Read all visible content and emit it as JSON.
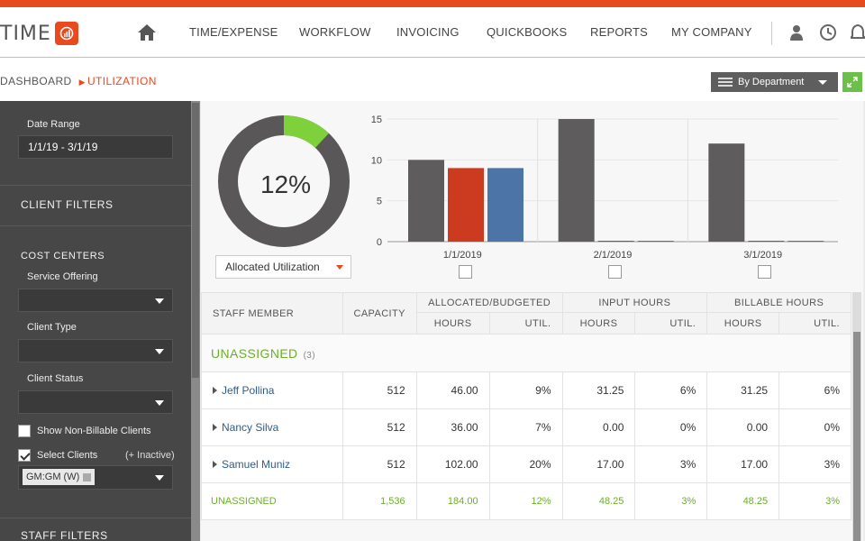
{
  "app": {
    "logo_text": "TIME",
    "brand_color": "#e8491d",
    "accent_green": "#6cc04a"
  },
  "nav": {
    "home_icon": "home-icon",
    "items": [
      "TIME/EXPENSE",
      "WORKFLOW",
      "INVOICING",
      "QUICKBOOKS",
      "REPORTS",
      "MY COMPANY"
    ],
    "right_icons": [
      "user-icon",
      "clock-icon",
      "bell-icon"
    ]
  },
  "breadcrumb": {
    "parent": "DASHBOARD",
    "current": "UTILIZATION"
  },
  "toolbar": {
    "group_by": "By Department"
  },
  "sidebar": {
    "date_range_label": "Date Range",
    "date_range_value": "1/1/19 - 3/1/19",
    "client_filters": "CLIENT FILTERS",
    "cost_centers": "COST CENTERS",
    "service_offering_label": "Service Offering",
    "service_offering_value": "",
    "client_type_label": "Client Type",
    "client_type_value": "",
    "client_status_label": "Client Status",
    "client_status_value": "",
    "show_non_billable_label": "Show Non-Billable Clients",
    "show_non_billable_checked": false,
    "select_clients_label": "Select Clients",
    "select_clients_checked": true,
    "inactive_label": "(+ Inactive)",
    "selected_client_tag": "GM:GM (W)",
    "staff_filters": "STAFF FILTERS"
  },
  "summary": {
    "utilization_percent": "12%",
    "utilization_fraction": 0.12,
    "metric_select": "Allocated Utilization"
  },
  "chart_data": {
    "type": "bar",
    "categories": [
      "1/1/2019",
      "2/1/2019",
      "3/1/2019"
    ],
    "series": [
      {
        "color": "#5e5c5c",
        "values": [
          10,
          15,
          12
        ]
      },
      {
        "color": "#cc3a1f",
        "values": [
          9,
          0,
          0
        ]
      },
      {
        "color": "#4d74a6",
        "values": [
          9,
          0,
          0
        ]
      }
    ],
    "ylim": [
      0,
      15
    ],
    "yticks": [
      0,
      5,
      10,
      15
    ],
    "grid": true
  },
  "table": {
    "headers": {
      "staff_member": "STAFF MEMBER",
      "capacity": "CAPACITY",
      "allocated": "ALLOCATED/BUDGETED",
      "input": "INPUT HOURS",
      "billable": "BILLABLE HOURS",
      "hours": "HOURS",
      "util": "UTIL."
    },
    "group": {
      "name": "UNASSIGNED",
      "count": "(3)"
    },
    "rows": [
      {
        "name": "Jeff Pollina",
        "capacity": "512",
        "alloc_hours": "46.00",
        "alloc_util": "9%",
        "input_hours": "31.25",
        "input_util": "6%",
        "billable_hours": "31.25",
        "billable_util": "6%"
      },
      {
        "name": "Nancy Silva",
        "capacity": "512",
        "alloc_hours": "36.00",
        "alloc_util": "7%",
        "input_hours": "0.00",
        "input_util": "0%",
        "billable_hours": "0.00",
        "billable_util": "0%"
      },
      {
        "name": "Samuel Muniz",
        "capacity": "512",
        "alloc_hours": "102.00",
        "alloc_util": "20%",
        "input_hours": "17.00",
        "input_util": "3%",
        "billable_hours": "17.00",
        "billable_util": "3%"
      }
    ],
    "total": {
      "name": "UNASSIGNED",
      "capacity": "1,536",
      "alloc_hours": "184.00",
      "alloc_util": "12%",
      "input_hours": "48.25",
      "input_util": "3%",
      "billable_hours": "48.25",
      "billable_util": "3%"
    }
  }
}
